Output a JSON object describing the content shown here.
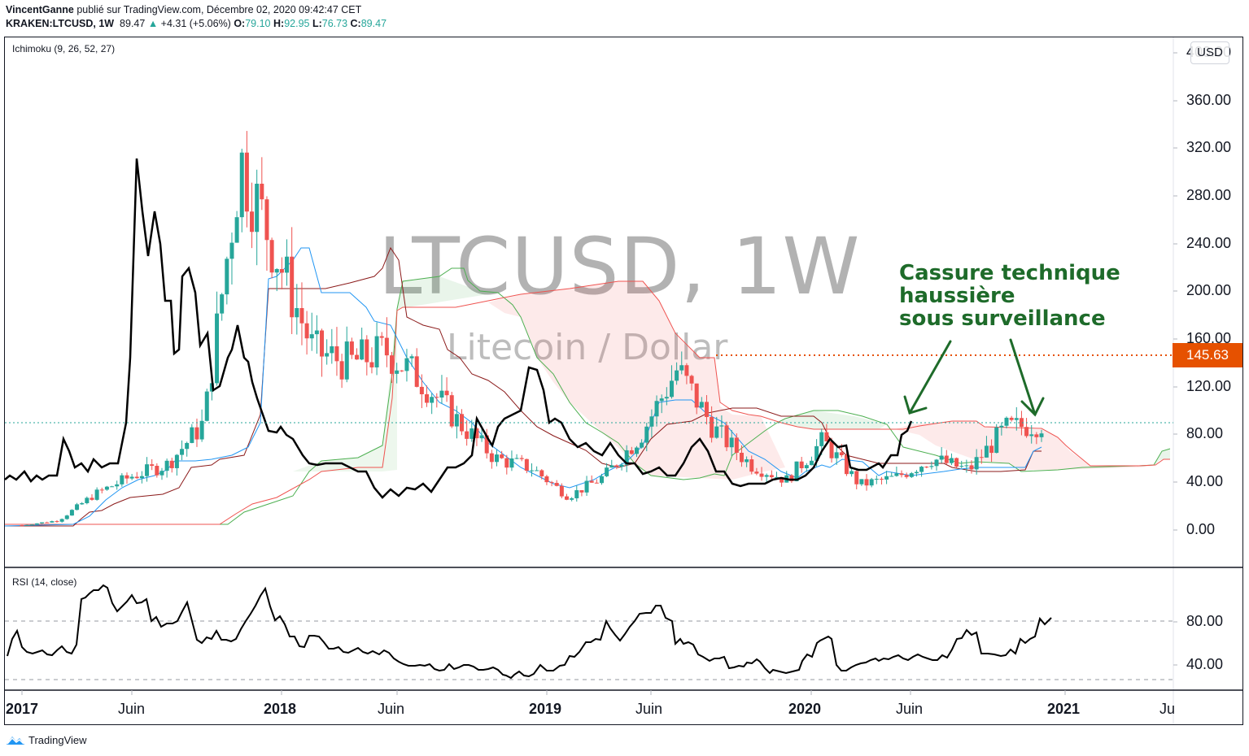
{
  "header": {
    "author": "VincentGanne",
    "published_text": "publié sur TradingView.com, Décembre 02, 2020 09:42:47 CET",
    "symbol": "KRAKEN:LTCUSD, 1W",
    "last": "89.47",
    "change": "+4.31 (+5.06%)",
    "o_label": "O:",
    "o": "79.10",
    "h_label": "H:",
    "h": "92.95",
    "l_label": "L:",
    "l": "76.73",
    "c_label": "C:",
    "c": "89.47"
  },
  "main_pane": {
    "indicator_label": "Ichimoku (9, 26, 52, 27)",
    "currency_button": "USD",
    "watermark_symbol": "LTCUSD, 1W",
    "watermark_desc": "Litecoin / Dollar",
    "price_line_value": "145.63",
    "y_ticks": [
      "400.00",
      "360.00",
      "320.00",
      "280.00",
      "240.00",
      "200.00",
      "160.00",
      "120.00",
      "80.00",
      "40.00",
      "0.00"
    ]
  },
  "rsi_pane": {
    "indicator_label": "RSI (14, close)",
    "y_ticks": [
      "80.00",
      "40.00"
    ]
  },
  "x_axis": {
    "labels": [
      {
        "text": "2017",
        "year": true
      },
      {
        "text": "Juin",
        "year": false
      },
      {
        "text": "2018",
        "year": true
      },
      {
        "text": "Juin",
        "year": false
      },
      {
        "text": "2019",
        "year": true
      },
      {
        "text": "Juin",
        "year": false
      },
      {
        "text": "2020",
        "year": true
      },
      {
        "text": "Juin",
        "year": false
      },
      {
        "text": "2021",
        "year": true
      },
      {
        "text": "Ju",
        "year": false
      }
    ]
  },
  "annotation": {
    "lines": [
      "Cassure technique",
      "haussière",
      "sous surveillance"
    ],
    "color": "#1e6b2a"
  },
  "footer": {
    "brand": "TradingView"
  },
  "colors": {
    "up": "#26a69a",
    "down": "#ef5350",
    "tenkan": "#2196f3",
    "kijun": "#8b1a1a",
    "chikou": "#000000",
    "senkou_a": "#4caf50",
    "senkou_b": "#ef5350",
    "price_line": "#e65100",
    "annotation": "#1e6b2a"
  },
  "chart_data": [
    {
      "type": "candlestick",
      "title": "KRAKEN:LTCUSD, 1W",
      "subtitle": "Litecoin / Dollar",
      "indicators": [
        "Ichimoku (9, 26, 52, 27)"
      ],
      "xlabel": "",
      "ylabel": "USD",
      "x_tick_labels": [
        "2017",
        "Juin",
        "2018",
        "Juin",
        "2019",
        "Juin",
        "2020",
        "Juin",
        "2021",
        "Ju"
      ],
      "y_tick_labels": [
        "0.00",
        "40.00",
        "80.00",
        "120.00",
        "160.00",
        "200.00",
        "240.00",
        "280.00",
        "320.00",
        "360.00",
        "400.00"
      ],
      "ylim": [
        -30,
        420
      ],
      "last_candle": {
        "open": 79.1,
        "high": 92.95,
        "low": 76.73,
        "close": 89.47,
        "change": 4.31,
        "change_pct": 5.06
      },
      "horizontal_lines": [
        {
          "value": 145.63,
          "style": "dotted",
          "color": "#e65100"
        },
        {
          "value": 89.47,
          "style": "dotted",
          "color": "#26a69a"
        }
      ],
      "approx_close_path": [
        {
          "period": "2017-01",
          "close": 4
        },
        {
          "period": "2017-04",
          "close": 8
        },
        {
          "period": "2017-06",
          "close": 30
        },
        {
          "period": "2017-08",
          "close": 45
        },
        {
          "period": "2017-10",
          "close": 55
        },
        {
          "period": "2017-11",
          "close": 90
        },
        {
          "period": "2017-12",
          "close": 310
        },
        {
          "period": "2018-01",
          "close": 230
        },
        {
          "period": "2018-02",
          "close": 150
        },
        {
          "period": "2018-03",
          "close": 140
        },
        {
          "period": "2018-04",
          "close": 150
        },
        {
          "period": "2018-05",
          "close": 125
        },
        {
          "period": "2018-06",
          "close": 90
        },
        {
          "period": "2018-08",
          "close": 60
        },
        {
          "period": "2018-10",
          "close": 52
        },
        {
          "period": "2018-12",
          "close": 28
        },
        {
          "period": "2019-02",
          "close": 45
        },
        {
          "period": "2019-04",
          "close": 80
        },
        {
          "period": "2019-06",
          "close": 135
        },
        {
          "period": "2019-08",
          "close": 85
        },
        {
          "period": "2019-10",
          "close": 55
        },
        {
          "period": "2019-12",
          "close": 42
        },
        {
          "period": "2020-02",
          "close": 75
        },
        {
          "period": "2020-03",
          "close": 38
        },
        {
          "period": "2020-06",
          "close": 44
        },
        {
          "period": "2020-08",
          "close": 60
        },
        {
          "period": "2020-10",
          "close": 50
        },
        {
          "period": "2020-11",
          "close": 85
        },
        {
          "period": "2020-12",
          "close": 89.47
        }
      ],
      "annotations": [
        {
          "text": "Cassure technique haussière sous surveillance",
          "arrows_to": [
            "chikou breakout",
            "price at cloud top"
          ]
        }
      ]
    },
    {
      "type": "line",
      "title": "RSI (14, close)",
      "y_tick_labels": [
        "40.00",
        "80.00"
      ],
      "bands": [
        30,
        70
      ],
      "approx_values": [
        {
          "period": "2017-01",
          "value": 48
        },
        {
          "period": "2017-02",
          "value": 55
        },
        {
          "period": "2017-03",
          "value": 48
        },
        {
          "period": "2017-04",
          "value": 90
        },
        {
          "period": "2017-05",
          "value": 96
        },
        {
          "period": "2017-06",
          "value": 82
        },
        {
          "period": "2017-08",
          "value": 70
        },
        {
          "period": "2017-09",
          "value": 83
        },
        {
          "period": "2017-10",
          "value": 58
        },
        {
          "period": "2017-12",
          "value": 92
        },
        {
          "period": "2018-01",
          "value": 68
        },
        {
          "period": "2018-03",
          "value": 55
        },
        {
          "period": "2018-06",
          "value": 45
        },
        {
          "period": "2018-09",
          "value": 38
        },
        {
          "period": "2018-12",
          "value": 30
        },
        {
          "period": "2019-02",
          "value": 44
        },
        {
          "period": "2019-04",
          "value": 70
        },
        {
          "period": "2019-06",
          "value": 78
        },
        {
          "period": "2019-08",
          "value": 52
        },
        {
          "period": "2019-10",
          "value": 42
        },
        {
          "period": "2019-12",
          "value": 38
        },
        {
          "period": "2020-02",
          "value": 62
        },
        {
          "period": "2020-03",
          "value": 42
        },
        {
          "period": "2020-06",
          "value": 48
        },
        {
          "period": "2020-08",
          "value": 62
        },
        {
          "period": "2020-10",
          "value": 50
        },
        {
          "period": "2020-11",
          "value": 70
        },
        {
          "period": "2020-12",
          "value": 72
        }
      ]
    }
  ]
}
